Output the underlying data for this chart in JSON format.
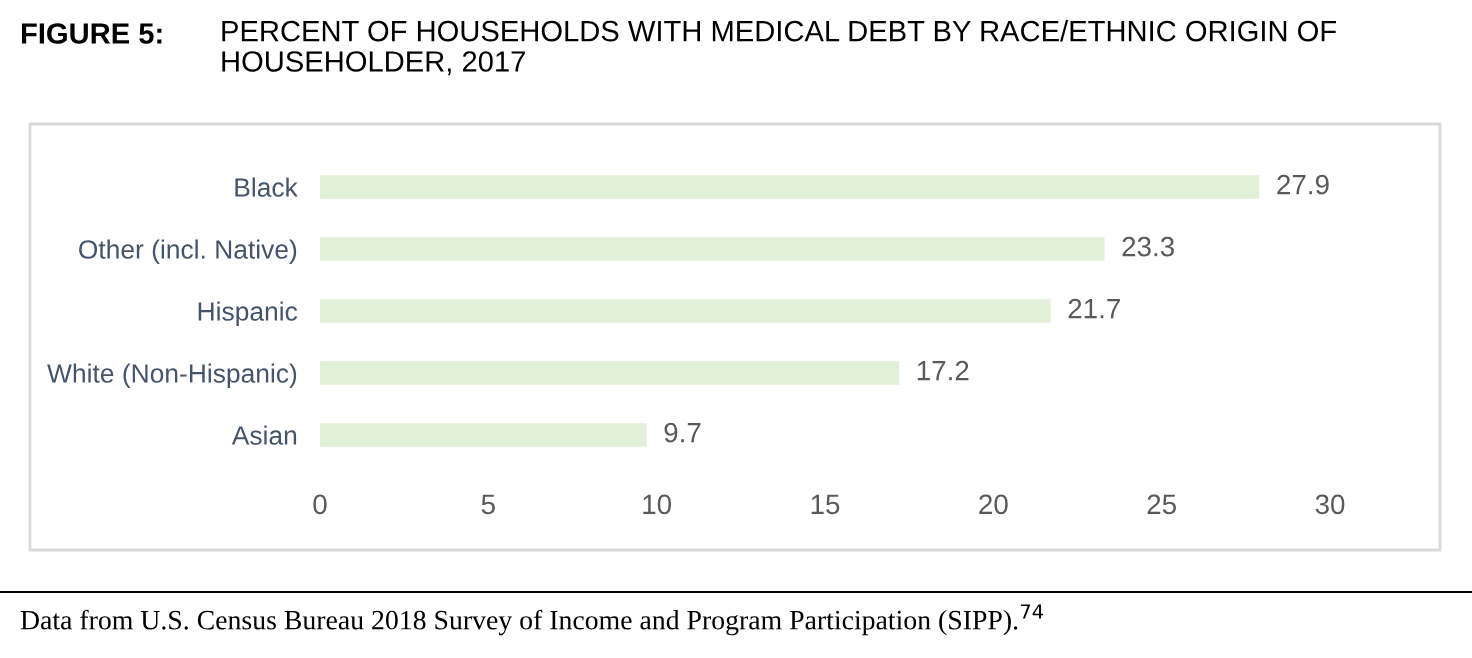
{
  "chart_data": {
    "type": "bar",
    "orientation": "horizontal",
    "title": "PERCENT OF HOUSEHOLDS WITH MEDICAL DEBT BY RACE/ETHNIC ORIGIN OF HOUSEHOLDER, 2017",
    "annotations": [
      "FIGURE 5:",
      "Data from U.S. Census Bureau 2018 Survey of Income and Program Participation (SIPP).$^{74}$"
    ],
    "categories": [
      "Black",
      "Other (incl. Native)",
      "Hispanic",
      "White (Non-Hispanic)",
      "Asian"
    ],
    "values": [
      27.9,
      23.3,
      21.7,
      17.2,
      9.7
    ],
    "color": "#e2efd9",
    "xlim": [
      0,
      30
    ],
    "xticks": [
      0,
      5,
      10,
      15,
      20,
      25,
      30
    ],
    "grid": false,
    "data_labels": true
  }
}
